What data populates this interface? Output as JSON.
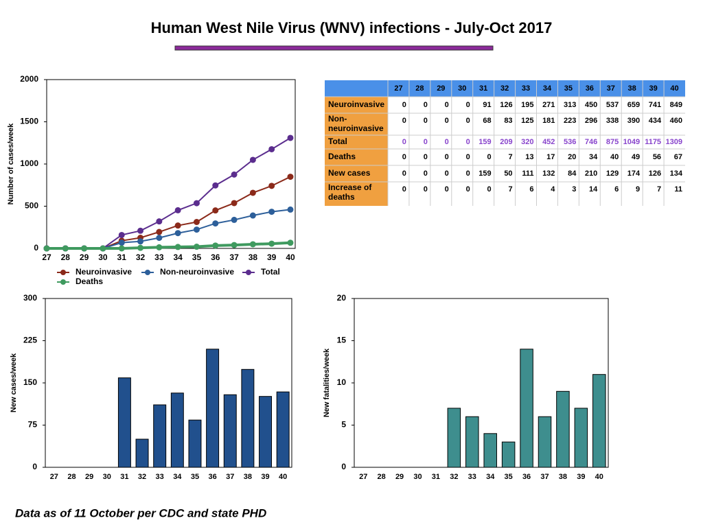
{
  "title": "Human West Nile Virus (WNV) infections - July-Oct 2017",
  "footnote": "Data as of 11 October per CDC and state PHD",
  "table": {
    "header": [
      27,
      28,
      29,
      30,
      31,
      32,
      33,
      34,
      35,
      36,
      37,
      38,
      39,
      40
    ],
    "rows": [
      {
        "label": "Neuroinvasive",
        "values": [
          0,
          0,
          0,
          0,
          91,
          126,
          195,
          271,
          313,
          450,
          537,
          659,
          741,
          849
        ]
      },
      {
        "label": "Non-neuroinvasive",
        "values": [
          0,
          0,
          0,
          0,
          68,
          83,
          125,
          181,
          223,
          296,
          338,
          390,
          434,
          460
        ]
      },
      {
        "label": "Total",
        "values": [
          0,
          0,
          0,
          0,
          159,
          209,
          320,
          452,
          536,
          746,
          875,
          1049,
          1175,
          1309
        ]
      },
      {
        "label": "Deaths",
        "values": [
          0,
          0,
          0,
          0,
          0,
          7,
          13,
          17,
          20,
          34,
          40,
          49,
          56,
          67
        ]
      },
      {
        "label": "New cases",
        "values": [
          0,
          0,
          0,
          0,
          159,
          50,
          111,
          132,
          84,
          210,
          129,
          174,
          126,
          134
        ]
      },
      {
        "label": "Increase of deaths",
        "values": [
          0,
          0,
          0,
          0,
          0,
          7,
          6,
          4,
          3,
          14,
          6,
          9,
          7,
          11
        ]
      }
    ]
  },
  "chart_data": [
    {
      "type": "line",
      "y_label": "Number of cases/week",
      "categories": [
        "27",
        "28",
        "29",
        "30",
        "31",
        "32",
        "33",
        "34",
        "35",
        "36",
        "37",
        "38",
        "39",
        "40"
      ],
      "series": [
        {
          "name": "Neuroinvasive",
          "color": "#8b2a1a",
          "values": [
            0,
            0,
            0,
            0,
            91,
            126,
            195,
            271,
            313,
            450,
            537,
            659,
            741,
            849
          ]
        },
        {
          "name": "Non-neuroinvasive",
          "color": "#2d5f9a",
          "values": [
            0,
            0,
            0,
            0,
            68,
            83,
            125,
            181,
            223,
            296,
            338,
            390,
            434,
            460
          ]
        },
        {
          "name": "Total",
          "color": "#5b2d8e",
          "values": [
            0,
            0,
            0,
            0,
            159,
            209,
            320,
            452,
            536,
            746,
            875,
            1049,
            1175,
            1309
          ]
        },
        {
          "name": "Deaths",
          "color": "#3f9a5f",
          "values": [
            0,
            0,
            0,
            0,
            0,
            7,
            13,
            17,
            20,
            34,
            40,
            49,
            56,
            67
          ]
        }
      ],
      "ylim": [
        0,
        2000
      ],
      "yticks": [
        0,
        500,
        1000,
        1500,
        2000
      ]
    },
    {
      "type": "bar",
      "y_label": "New cases/week",
      "color": "#21508d",
      "categories": [
        "27",
        "28",
        "29",
        "30",
        "31",
        "32",
        "33",
        "34",
        "35",
        "36",
        "37",
        "38",
        "39",
        "40"
      ],
      "values": [
        0,
        0,
        0,
        0,
        159,
        50,
        111,
        132,
        84,
        210,
        129,
        174,
        126,
        134
      ],
      "ylim": [
        0,
        300
      ],
      "yticks": [
        0,
        75,
        150,
        225,
        300
      ]
    },
    {
      "type": "bar",
      "y_label": "New fatalities/week",
      "color": "#3e8e8e",
      "categories": [
        "27",
        "28",
        "29",
        "30",
        "31",
        "32",
        "33",
        "34",
        "35",
        "36",
        "37",
        "38",
        "39",
        "40"
      ],
      "values": [
        0,
        0,
        0,
        0,
        0,
        7,
        6,
        4,
        3,
        14,
        6,
        9,
        7,
        11
      ],
      "ylim": [
        0,
        20
      ],
      "yticks": [
        0,
        5,
        10,
        15,
        20
      ]
    }
  ]
}
